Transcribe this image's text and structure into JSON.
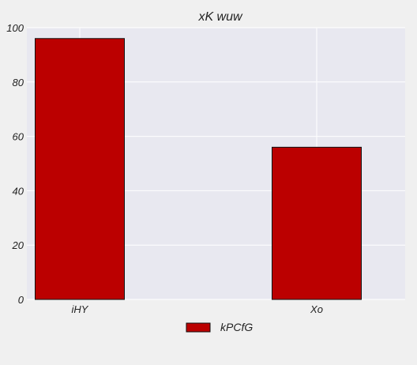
{
  "chart_data": {
    "type": "bar",
    "title": "xK wuw",
    "xlabel": "",
    "ylabel": "",
    "categories": [
      "iHY",
      "Xo"
    ],
    "series": [
      {
        "name": "kPCfG",
        "values": [
          96,
          56
        ],
        "color": "#bb0000"
      }
    ],
    "ylim": [
      0,
      100
    ],
    "yticks": [
      0,
      20,
      40,
      60,
      80,
      100
    ],
    "grid": true,
    "legend_position": "bottom-center",
    "colors": {
      "plot_background": "#e8e8f0",
      "grid": "#ffffff",
      "bar_edge": "#111111",
      "page_background": "#f0f0f0"
    }
  }
}
